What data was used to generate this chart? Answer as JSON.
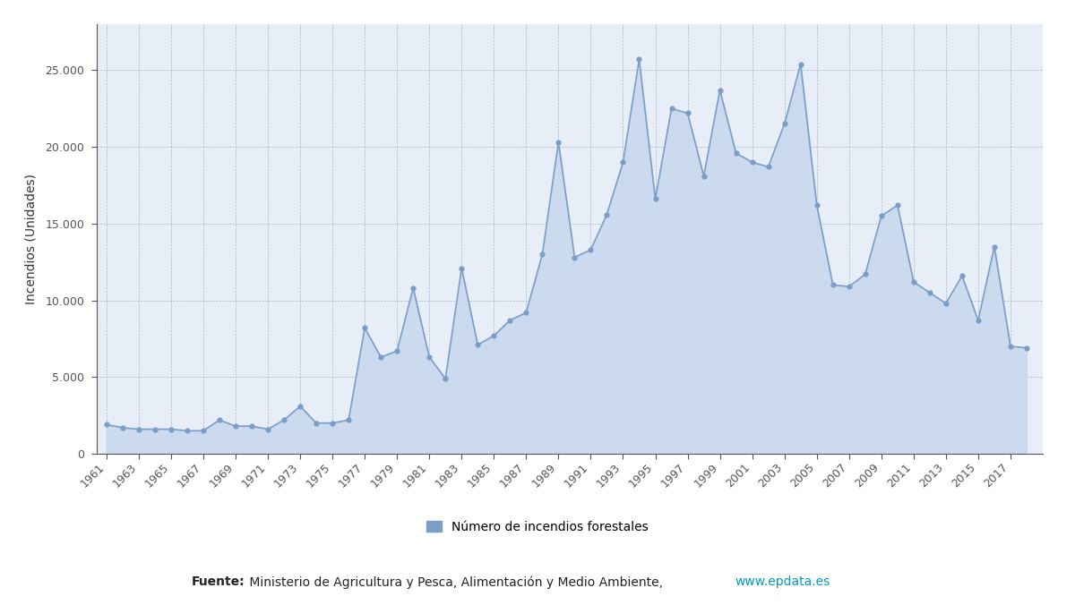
{
  "years": [
    1961,
    1962,
    1963,
    1964,
    1965,
    1966,
    1967,
    1968,
    1969,
    1970,
    1971,
    1972,
    1973,
    1974,
    1975,
    1976,
    1977,
    1978,
    1979,
    1980,
    1981,
    1982,
    1983,
    1984,
    1985,
    1986,
    1987,
    1988,
    1989,
    1990,
    1991,
    1992,
    1993,
    1994,
    1995,
    1996,
    1997,
    1998,
    1999,
    2000,
    2001,
    2002,
    2003,
    2004,
    2005,
    2006,
    2007,
    2008,
    2009,
    2010,
    2011,
    2012,
    2013,
    2014,
    2015,
    2016,
    2017,
    2018
  ],
  "values": [
    1900,
    1700,
    1600,
    1600,
    1600,
    1500,
    1500,
    2200,
    1800,
    1800,
    1600,
    2200,
    3100,
    2000,
    2000,
    2200,
    8200,
    6300,
    6700,
    10800,
    6300,
    4900,
    12100,
    7100,
    7700,
    8700,
    9200,
    13000,
    20300,
    12800,
    13300,
    15600,
    19000,
    25700,
    16600,
    22500,
    22200,
    18100,
    23700,
    19600,
    19000,
    18700,
    21500,
    25400,
    16200,
    11000,
    10900,
    11700,
    15500,
    16200,
    11200,
    10500,
    9800,
    11600,
    8700,
    13500,
    7000,
    6900
  ],
  "line_color": "#7b9ec8",
  "fill_color": "#c8d8ee",
  "plot_bg_color": "#e8eef8",
  "grid_color": "#9aaabf",
  "ylabel": "Incendios (Unidades)",
  "ylim": [
    0,
    28000
  ],
  "yticks": [
    0,
    5000,
    10000,
    15000,
    20000,
    25000
  ],
  "xlim_left": 1960.4,
  "xlim_right": 2019.0,
  "legend_label": "Número de incendios forestales",
  "source_bold": "Fuente:",
  "source_normal": " Ministerio de Agricultura y Pesca, Alimentación y Medio Ambiente, ",
  "source_url": "www.epdata.es",
  "source_url_color": "#0099bb",
  "tick_color": "#555555",
  "left_spine_color": "#555555",
  "bottom_spine_color": "#555555",
  "ylabel_color": "#333333",
  "ylabel_fontsize": 10,
  "tick_fontsize": 9,
  "legend_fontsize": 10,
  "source_fontsize": 10
}
